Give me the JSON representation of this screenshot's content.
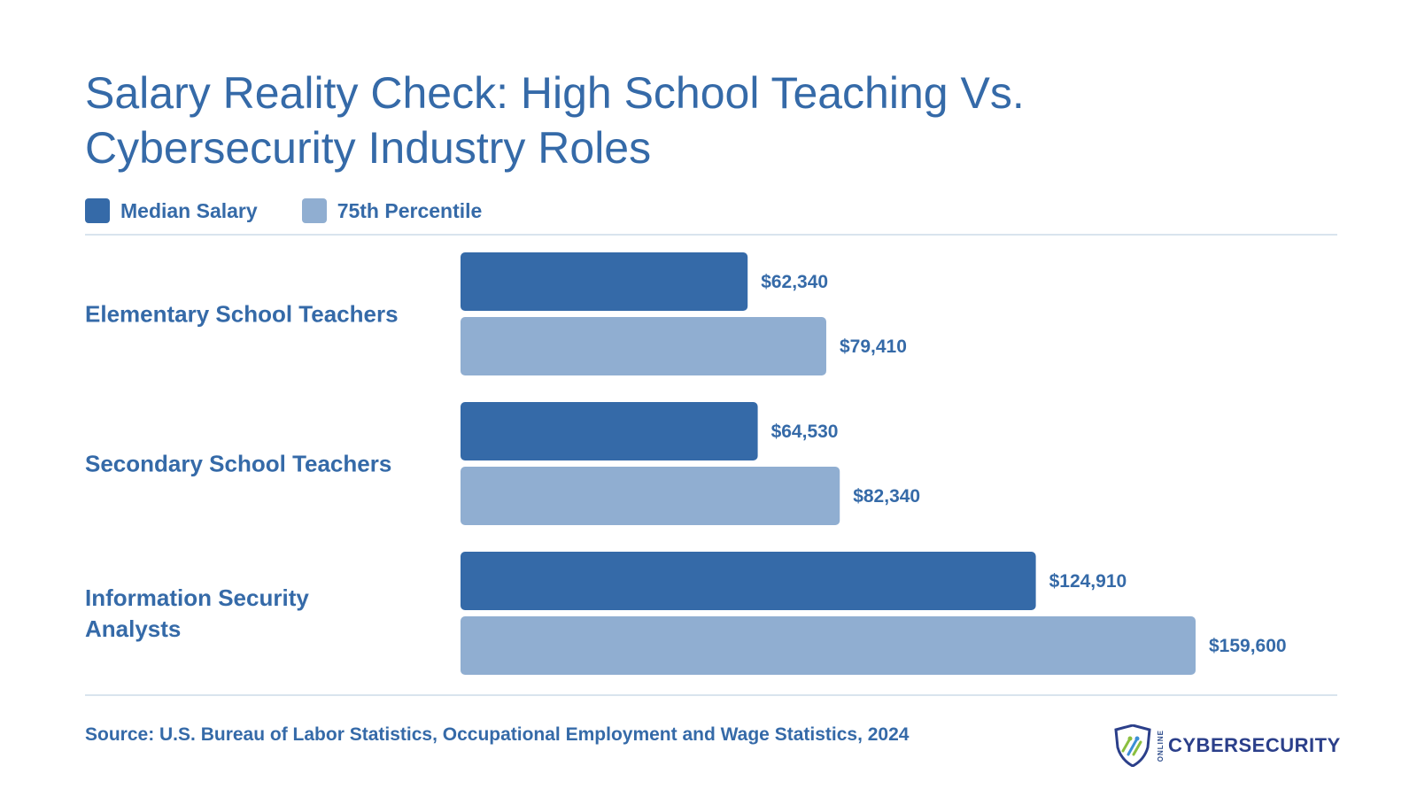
{
  "chart_data": {
    "type": "bar",
    "orientation": "horizontal",
    "title": "Salary Reality Check: High School Teaching Vs. Cybersecurity Industry Roles",
    "categories": [
      [
        "Elementary School Teachers"
      ],
      [
        "Secondary School Teachers"
      ],
      [
        "Information Security",
        "Analysts"
      ]
    ],
    "series": [
      {
        "name": "Median Salary",
        "color": "#356aa8",
        "values": [
          62340,
          64530,
          124910
        ],
        "labels": [
          "$62,340",
          "$64,530",
          "$124,910"
        ]
      },
      {
        "name": "75th Percentile",
        "color": "#90aed1",
        "values": [
          79410,
          82340,
          159600
        ],
        "labels": [
          "$79,410",
          "$82,340",
          "$159,600"
        ]
      }
    ],
    "xlim": [
      0,
      159600
    ],
    "grid": false,
    "legend_position": "top-left"
  },
  "source": "Source: U.S. Bureau of Labor Statistics, Occupational Employment and Wage Statistics, 2024",
  "logo": {
    "small_text": "ONLINE",
    "main_text": "CYBERSECURITY",
    "icon": "shield-icon"
  }
}
